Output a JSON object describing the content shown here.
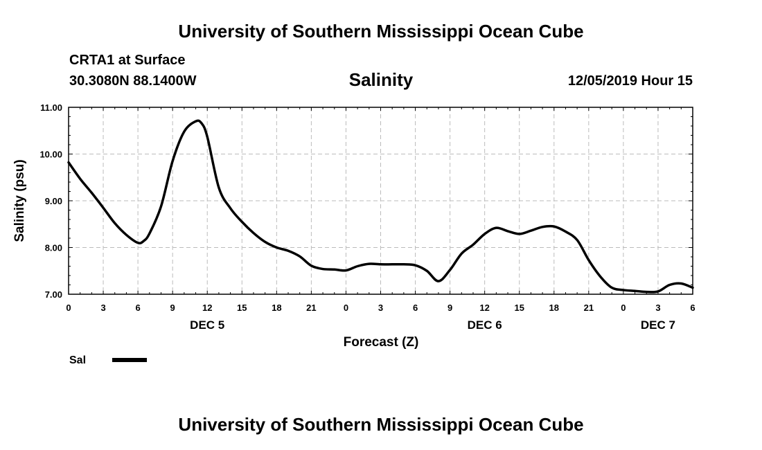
{
  "header": {
    "title_top": "University of Southern Mississippi Ocean Cube",
    "station_name": "CRTA1 at Surface",
    "station_coords": "30.3080N 88.1400W",
    "chart_title": "Salinity",
    "run_time": "12/05/2019 Hour 15"
  },
  "footer": {
    "title_bottom": "University of Southern Mississippi Ocean Cube"
  },
  "chart_data": {
    "type": "line",
    "title": "Salinity",
    "xlabel": "Forecast (Z)",
    "ylabel": "Salinity (psu)",
    "ylim": [
      7.0,
      11.0
    ],
    "xlim": [
      0,
      54
    ],
    "x_units": "hours since DEC 5 00Z",
    "y_ticks": [
      "7.00",
      "8.00",
      "9.00",
      "10.00",
      "11.00"
    ],
    "x_tick_labels": [
      "0",
      "3",
      "6",
      "9",
      "12",
      "15",
      "18",
      "21",
      "0",
      "3",
      "6",
      "9",
      "12",
      "15",
      "18",
      "21",
      "0",
      "3",
      "6"
    ],
    "date_labels": [
      {
        "label": "DEC 5",
        "hour": 12
      },
      {
        "label": "DEC 6",
        "hour": 36
      },
      {
        "label": "DEC 7",
        "hour": 51
      }
    ],
    "grid": true,
    "legend": "bottom-left",
    "series": [
      {
        "name": "Sal",
        "color": "#000000",
        "x": [
          0,
          1,
          2,
          3,
          4,
          5,
          6,
          6.5,
          7,
          8,
          9,
          10,
          11,
          11.5,
          12,
          13,
          14,
          15,
          16,
          17,
          18,
          19,
          20,
          21,
          22,
          23,
          24,
          25,
          26,
          27,
          28,
          29,
          30,
          31,
          32,
          33,
          34,
          35,
          36,
          37,
          38,
          39,
          40,
          41,
          42,
          43,
          44,
          45,
          46,
          47,
          48,
          49,
          50,
          51,
          52,
          53,
          54
        ],
        "y": [
          9.82,
          9.47,
          9.17,
          8.85,
          8.52,
          8.27,
          8.1,
          8.14,
          8.3,
          8.88,
          9.85,
          10.48,
          10.7,
          10.66,
          10.37,
          9.28,
          8.84,
          8.55,
          8.31,
          8.12,
          8.0,
          7.93,
          7.81,
          7.61,
          7.54,
          7.53,
          7.51,
          7.6,
          7.65,
          7.64,
          7.64,
          7.64,
          7.62,
          7.5,
          7.28,
          7.52,
          7.87,
          8.06,
          8.29,
          8.42,
          8.35,
          8.29,
          8.36,
          8.44,
          8.45,
          8.34,
          8.16,
          7.73,
          7.38,
          7.14,
          7.09,
          7.07,
          7.05,
          7.06,
          7.2,
          7.23,
          7.14
        ]
      }
    ]
  },
  "legend": {
    "label": "Sal"
  }
}
